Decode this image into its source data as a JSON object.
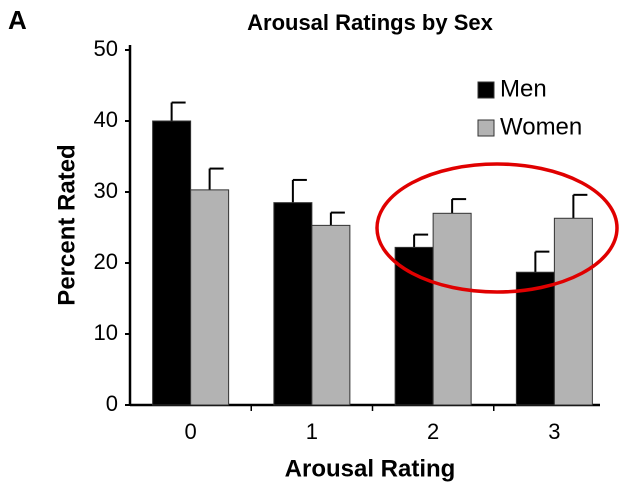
{
  "chart_data": {
    "type": "bar",
    "panel_label": "A",
    "title": "Arousal Ratings by Sex",
    "xlabel": "Arousal Rating",
    "ylabel": "Percent Rated",
    "categories": [
      "0",
      "1",
      "2",
      "3"
    ],
    "series": [
      {
        "name": "Men",
        "color": "#000000",
        "values": [
          40,
          28.5,
          22.2,
          18.7
        ],
        "errors": [
          2.6,
          3.2,
          1.8,
          2.9
        ]
      },
      {
        "name": "Women",
        "color": "#b3b3b3",
        "values": [
          30.3,
          25.3,
          27,
          26.3
        ],
        "errors": [
          3.0,
          1.8,
          2.0,
          3.3
        ]
      }
    ],
    "ylim": [
      0,
      50
    ],
    "yticks": [
      0,
      10,
      20,
      30,
      40,
      50
    ],
    "legend": "upper right"
  }
}
